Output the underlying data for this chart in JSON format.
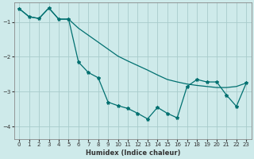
{
  "xlabel": "Humidex (Indice chaleur)",
  "background_color": "#ceeaea",
  "grid_color": "#a8cccc",
  "line_color": "#007070",
  "xlim": [
    -0.5,
    23.5
  ],
  "ylim": [
    -4.35,
    -0.45
  ],
  "yticks": [
    -4,
    -3,
    -2,
    -1
  ],
  "xticks": [
    0,
    1,
    2,
    3,
    4,
    5,
    6,
    7,
    8,
    9,
    10,
    11,
    12,
    13,
    14,
    15,
    16,
    17,
    18,
    19,
    20,
    21,
    22,
    23
  ],
  "smooth_x": [
    0,
    1,
    2,
    3,
    4,
    5,
    6,
    7,
    8,
    9,
    10,
    11,
    12,
    13,
    14,
    15,
    16,
    17,
    18,
    19,
    20,
    21,
    22,
    23
  ],
  "smooth_y": [
    -0.62,
    -0.85,
    -0.9,
    -0.6,
    -0.92,
    -0.92,
    -1.18,
    -1.38,
    -1.58,
    -1.78,
    -1.98,
    -2.12,
    -2.25,
    -2.38,
    -2.52,
    -2.65,
    -2.72,
    -2.78,
    -2.82,
    -2.85,
    -2.88,
    -2.88,
    -2.85,
    -2.75
  ],
  "jagged_x": [
    0,
    1,
    2,
    3,
    4,
    5,
    6,
    7,
    8,
    9,
    10,
    11,
    12,
    13,
    14,
    15,
    16,
    17,
    18,
    19,
    20,
    21,
    22,
    23
  ],
  "jagged_y": [
    -0.62,
    -0.85,
    -0.9,
    -0.6,
    -0.92,
    -0.92,
    -2.15,
    -2.45,
    -2.6,
    -3.3,
    -3.4,
    -3.48,
    -3.62,
    -3.78,
    -3.45,
    -3.62,
    -3.75,
    -2.85,
    -2.65,
    -2.72,
    -2.72,
    -3.1,
    -3.42,
    -2.75
  ]
}
